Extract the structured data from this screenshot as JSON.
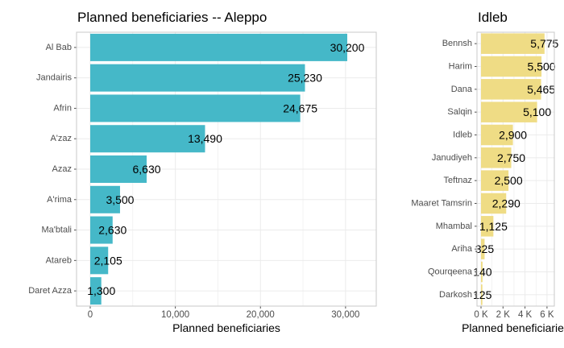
{
  "chart_data": [
    {
      "type": "bar",
      "orientation": "horizontal",
      "title": "Planned beneficiaries -- Aleppo",
      "xlabel": "Planned beneficiaries",
      "ylabel": "",
      "xlim": [
        0,
        32000
      ],
      "x_ticks": [
        0,
        10000,
        20000,
        30000
      ],
      "x_tick_labels": [
        "0",
        "10,000",
        "20,000",
        "30,000"
      ],
      "grid": true,
      "bar_color": "#45B8C8",
      "categories": [
        "Al Bab",
        "Jandairis",
        "Afrin",
        "A'zaz",
        "Azaz",
        "A'rima",
        "Ma'btali",
        "Atareb",
        "Daret Azza"
      ],
      "values": [
        30200,
        25230,
        24675,
        13490,
        6630,
        3500,
        2630,
        2105,
        1300
      ],
      "value_labels": [
        "30,200",
        "25,230",
        "24,675",
        "13,490",
        "6,630",
        "3,500",
        "2,630",
        "2,105",
        "1,300"
      ]
    },
    {
      "type": "bar",
      "orientation": "horizontal",
      "title": "Idleb",
      "xlabel": "Planned beneficiaries",
      "ylabel": "",
      "xlim": [
        0,
        6300
      ],
      "x_ticks": [
        0,
        2000,
        4000,
        6000
      ],
      "x_tick_labels": [
        "0 K",
        "2 K",
        "4 K",
        "6 K"
      ],
      "grid": true,
      "bar_color": "#EFDC85",
      "categories": [
        "Bennsh",
        "Harim",
        "Dana",
        "Salqin",
        "Idleb",
        "Janudiyeh",
        "Teftnaz",
        "Maaret Tamsrin",
        "Mhambal",
        "Ariha",
        "Qourqeena",
        "Darkosh"
      ],
      "values": [
        5775,
        5500,
        5465,
        5100,
        2900,
        2750,
        2500,
        2290,
        1125,
        325,
        140,
        125
      ],
      "value_labels": [
        "5,775",
        "5,500",
        "5,465",
        "5,100",
        "2,900",
        "2,750",
        "2,500",
        "2,290",
        "1,125",
        "325",
        "140",
        "125"
      ]
    }
  ]
}
